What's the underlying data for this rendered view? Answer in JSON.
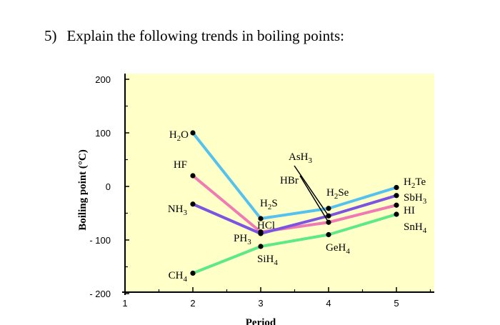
{
  "question": {
    "number": "5)",
    "text": "Explain the following trends in boiling points:"
  },
  "chart_data": {
    "type": "line",
    "xlabel": "Period",
    "ylabel": "Boiling point (°C)",
    "xlim": [
      1,
      5.5
    ],
    "ylim": [
      -200,
      210
    ],
    "x_ticks": [
      {
        "v": 1,
        "label": "1"
      },
      {
        "v": 2,
        "label": "2"
      },
      {
        "v": 3,
        "label": "3"
      },
      {
        "v": 4,
        "label": "4"
      },
      {
        "v": 5,
        "label": "5"
      }
    ],
    "y_ticks": [
      {
        "v": 200,
        "label": "200"
      },
      {
        "v": 100,
        "label": "100"
      },
      {
        "v": 0,
        "label": "0"
      },
      {
        "v": -100,
        "label": "- 100"
      },
      {
        "v": -200,
        "label": "- 200"
      }
    ],
    "background_color": "#ffffc8",
    "series": [
      {
        "color": "#55c2ee",
        "points": [
          {
            "x": 2,
            "y": 100,
            "label": "H2O"
          },
          {
            "x": 3,
            "y": -60,
            "label": "H2S"
          },
          {
            "x": 4,
            "y": -41,
            "label": "H2Se"
          },
          {
            "x": 5,
            "y": -2,
            "label": "H2Te"
          }
        ]
      },
      {
        "color": "#f07ab4",
        "points": [
          {
            "x": 2,
            "y": 20,
            "label": "HF"
          },
          {
            "x": 3,
            "y": -85,
            "label": "HCl"
          },
          {
            "x": 4,
            "y": -67,
            "label": "HBr"
          },
          {
            "x": 5,
            "y": -35,
            "label": "HI"
          }
        ]
      },
      {
        "color": "#7b55e0",
        "points": [
          {
            "x": 2,
            "y": -33,
            "label": "NH3"
          },
          {
            "x": 3,
            "y": -88,
            "label": "PH3"
          },
          {
            "x": 4,
            "y": -55,
            "label": "AsH3"
          },
          {
            "x": 5,
            "y": -17,
            "label": "SbH3"
          }
        ]
      },
      {
        "color": "#5ee888",
        "points": [
          {
            "x": 2,
            "y": -162,
            "label": "CH4"
          },
          {
            "x": 3,
            "y": -112,
            "label": "SiH4"
          },
          {
            "x": 4,
            "y": -90,
            "label": "GeH4"
          },
          {
            "x": 5,
            "y": -52,
            "label": "SnH4"
          }
        ]
      }
    ],
    "point_labels": [
      {
        "base": "H",
        "sub": "2",
        "rest": "O"
      },
      {
        "base": "HF",
        "sub": "",
        "rest": ""
      },
      {
        "base": "NH",
        "sub": "3",
        "rest": ""
      },
      {
        "base": "CH",
        "sub": "4",
        "rest": ""
      },
      {
        "base": "AsH",
        "sub": "3",
        "rest": ""
      },
      {
        "base": "HBr",
        "sub": "",
        "rest": ""
      },
      {
        "base": "H",
        "sub": "2",
        "rest": "S"
      },
      {
        "base": "HCl",
        "sub": "",
        "rest": ""
      },
      {
        "base": "PH",
        "sub": "3",
        "rest": ""
      },
      {
        "base": "SiH",
        "sub": "4",
        "rest": ""
      },
      {
        "base": "H",
        "sub": "2",
        "rest": "Se"
      },
      {
        "base": "GeH",
        "sub": "4",
        "rest": ""
      },
      {
        "base": "H",
        "sub": "2",
        "rest": "Te"
      },
      {
        "base": "SbH",
        "sub": "3",
        "rest": ""
      },
      {
        "base": "HI",
        "sub": "",
        "rest": ""
      },
      {
        "base": "SnH",
        "sub": "4",
        "rest": ""
      }
    ]
  }
}
